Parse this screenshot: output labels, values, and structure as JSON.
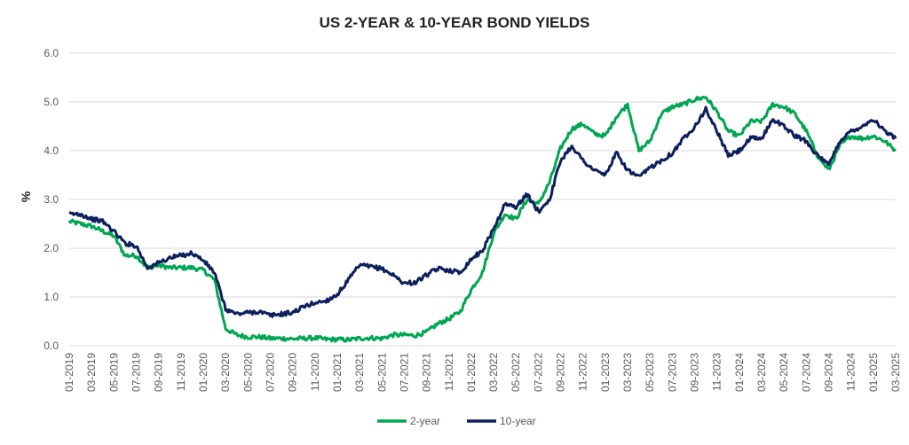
{
  "chart_data": {
    "type": "line",
    "title": "US 2-YEAR & 10-YEAR BOND YIELDS",
    "ylabel": "%",
    "xlabel": "",
    "ylim": [
      0.0,
      6.0
    ],
    "yticks": [
      "0.0",
      "1.0",
      "2.0",
      "3.0",
      "4.0",
      "5.0",
      "6.0"
    ],
    "xticks": [
      "01-2019",
      "03-2019",
      "05-2019",
      "07-2019",
      "09-2019",
      "11-2019",
      "01-2020",
      "03-2020",
      "05-2020",
      "07-2020",
      "09-2020",
      "11-2020",
      "01-2021",
      "03-2021",
      "05-2021",
      "07-2021",
      "09-2021",
      "11-2021",
      "01-2022",
      "03-2022",
      "05-2022",
      "07-2022",
      "09-2022",
      "11-2022",
      "01-2023",
      "03-2023",
      "05-2023",
      "07-2023",
      "09-2023",
      "11-2023",
      "01-2024",
      "03-2024",
      "05-2024",
      "07-2024",
      "09-2024",
      "11-2024",
      "01-2025",
      "03-2025"
    ],
    "grid": "horizontal",
    "legend_position": "bottom-center",
    "series": [
      {
        "name": "2-year",
        "color": "#00A651",
        "x": [
          "2019-01",
          "2019-02",
          "2019-03",
          "2019-04",
          "2019-05",
          "2019-06",
          "2019-07",
          "2019-08",
          "2019-09",
          "2019-10",
          "2019-11",
          "2019-12",
          "2020-01",
          "2020-02",
          "2020-03",
          "2020-04",
          "2020-05",
          "2020-06",
          "2020-07",
          "2020-08",
          "2020-09",
          "2020-10",
          "2020-11",
          "2020-12",
          "2021-01",
          "2021-02",
          "2021-03",
          "2021-04",
          "2021-05",
          "2021-06",
          "2021-07",
          "2021-08",
          "2021-09",
          "2021-10",
          "2021-11",
          "2021-12",
          "2022-01",
          "2022-02",
          "2022-03",
          "2022-04",
          "2022-05",
          "2022-06",
          "2022-07",
          "2022-08",
          "2022-09",
          "2022-10",
          "2022-11",
          "2022-12",
          "2023-01",
          "2023-02",
          "2023-03",
          "2023-04",
          "2023-05",
          "2023-06",
          "2023-07",
          "2023-08",
          "2023-09",
          "2023-10",
          "2023-11",
          "2023-12",
          "2024-01",
          "2024-02",
          "2024-03",
          "2024-04",
          "2024-05",
          "2024-06",
          "2024-07",
          "2024-08",
          "2024-09",
          "2024-10",
          "2024-11",
          "2024-12",
          "2025-01",
          "2025-02",
          "2025-03"
        ],
        "values": [
          2.55,
          2.5,
          2.45,
          2.35,
          2.25,
          1.85,
          1.85,
          1.6,
          1.65,
          1.6,
          1.6,
          1.6,
          1.55,
          1.35,
          0.35,
          0.22,
          0.18,
          0.18,
          0.15,
          0.15,
          0.14,
          0.15,
          0.16,
          0.13,
          0.13,
          0.12,
          0.15,
          0.16,
          0.15,
          0.22,
          0.22,
          0.21,
          0.28,
          0.45,
          0.55,
          0.7,
          1.15,
          1.5,
          2.3,
          2.7,
          2.6,
          3.0,
          2.9,
          3.35,
          4.05,
          4.45,
          4.55,
          4.35,
          4.3,
          4.7,
          4.95,
          4.0,
          4.2,
          4.75,
          4.9,
          4.95,
          5.05,
          5.1,
          4.8,
          4.4,
          4.3,
          4.6,
          4.6,
          4.95,
          4.9,
          4.75,
          4.4,
          3.9,
          3.6,
          4.1,
          4.3,
          4.25,
          4.3,
          4.2,
          4.0
        ]
      },
      {
        "name": "10-year",
        "color": "#0D1F5C",
        "x": [
          "2019-01",
          "2019-02",
          "2019-03",
          "2019-04",
          "2019-05",
          "2019-06",
          "2019-07",
          "2019-08",
          "2019-09",
          "2019-10",
          "2019-11",
          "2019-12",
          "2020-01",
          "2020-02",
          "2020-03",
          "2020-04",
          "2020-05",
          "2020-06",
          "2020-07",
          "2020-08",
          "2020-09",
          "2020-10",
          "2020-11",
          "2020-12",
          "2021-01",
          "2021-02",
          "2021-03",
          "2021-04",
          "2021-05",
          "2021-06",
          "2021-07",
          "2021-08",
          "2021-09",
          "2021-10",
          "2021-11",
          "2021-12",
          "2022-01",
          "2022-02",
          "2022-03",
          "2022-04",
          "2022-05",
          "2022-06",
          "2022-07",
          "2022-08",
          "2022-09",
          "2022-10",
          "2022-11",
          "2022-12",
          "2023-01",
          "2023-02",
          "2023-03",
          "2023-04",
          "2023-05",
          "2023-06",
          "2023-07",
          "2023-08",
          "2023-09",
          "2023-10",
          "2023-11",
          "2023-12",
          "2024-01",
          "2024-02",
          "2024-03",
          "2024-04",
          "2024-05",
          "2024-06",
          "2024-07",
          "2024-08",
          "2024-09",
          "2024-10",
          "2024-11",
          "2024-12",
          "2025-01",
          "2025-02",
          "2025-03"
        ],
        "values": [
          2.7,
          2.7,
          2.6,
          2.55,
          2.35,
          2.1,
          2.05,
          1.6,
          1.7,
          1.8,
          1.85,
          1.9,
          1.75,
          1.5,
          0.75,
          0.65,
          0.68,
          0.7,
          0.62,
          0.65,
          0.68,
          0.8,
          0.88,
          0.92,
          1.05,
          1.35,
          1.65,
          1.62,
          1.58,
          1.45,
          1.28,
          1.3,
          1.45,
          1.58,
          1.55,
          1.5,
          1.78,
          1.95,
          2.4,
          2.9,
          2.85,
          3.1,
          2.75,
          3.0,
          3.8,
          4.1,
          3.8,
          3.6,
          3.5,
          3.95,
          3.6,
          3.45,
          3.65,
          3.8,
          3.95,
          4.25,
          4.5,
          4.85,
          4.4,
          3.9,
          4.0,
          4.25,
          4.25,
          4.65,
          4.5,
          4.3,
          4.2,
          3.9,
          3.7,
          4.2,
          4.4,
          4.5,
          4.65,
          4.4,
          4.25
        ]
      }
    ]
  }
}
